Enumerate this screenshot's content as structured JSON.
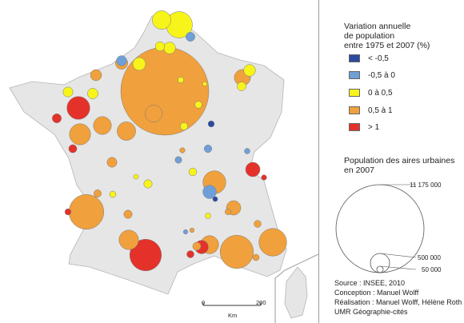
{
  "colors": {
    "lt_-0.5": "#2b4aa0",
    "-0.5_0": "#6f9fd8",
    "0_0.5": "#f7f41a",
    "0.5_1": "#f0a03c",
    "gt_1": "#e4322b",
    "land": "#e6e6e6",
    "land_stroke": "#b5b5b5"
  },
  "legend": {
    "title_lines": [
      "Variation annuelle",
      "de population",
      "entre 1975 et 2007 (%)"
    ],
    "classes": [
      {
        "label": "< -0,5",
        "color_key": "lt_-0.5"
      },
      {
        "label": "-0,5 à 0",
        "color_key": "-0.5_0"
      },
      {
        "label": "0 à 0,5",
        "color_key": "0_0.5"
      },
      {
        "label": "0,5 à 1",
        "color_key": "0.5_1"
      },
      {
        "label": "> 1",
        "color_key": "gt_1"
      }
    ]
  },
  "size_legend": {
    "title_lines": [
      "Population des aires urbaines",
      "en 2007"
    ],
    "values": [
      {
        "label": "11 175 000",
        "population": 11175000
      },
      {
        "label": "500 000",
        "population": 500000
      },
      {
        "label": "50 000",
        "population": 50000
      }
    ]
  },
  "credits": {
    "lines": [
      "Source : INSEE, 2010",
      "Conception : Manuel Wolff",
      "Réalisation : Manuel Wolff, Hélène Roth",
      "UMR Géographie-cités"
    ]
  },
  "scale_bar": {
    "start": "0",
    "end": "200",
    "unit": "Km"
  },
  "map_data": {
    "symbols": [
      {
        "pop": 11175000,
        "cls": "0.5_1"
      },
      {
        "pop": 1450000,
        "cls": "gt_1"
      },
      {
        "pop": 1750000,
        "cls": "0.5_1"
      },
      {
        "pop": 1600000,
        "cls": "0.5_1"
      },
      {
        "pop": 1100000,
        "cls": "0.5_1"
      },
      {
        "pop": 1000000,
        "cls": "0_0.5"
      },
      {
        "pop": 760000,
        "cls": "0.5_1"
      },
      {
        "pop": 640000,
        "cls": "0.5_1"
      },
      {
        "pop": 550000,
        "cls": "0.5_1"
      },
      {
        "pop": 760000,
        "cls": "gt_1"
      },
      {
        "pop": 500000,
        "cls": "0.5_1"
      },
      {
        "pop": 460000,
        "cls": "0.5_1"
      },
      {
        "pop": 470000,
        "cls": "0.5_1"
      },
      {
        "pop": 500000,
        "cls": "0_0.5"
      },
      {
        "pop": 420000,
        "cls": "0.5_1"
      },
      {
        "pop": 380000,
        "cls": "0.5_1"
      },
      {
        "pop": 300000,
        "cls": "0.5_1"
      },
      {
        "pop": 300000,
        "cls": "gt_1"
      },
      {
        "pop": 260000,
        "cls": "gt_1"
      },
      {
        "pop": 260000,
        "cls": "-0.5_0"
      },
      {
        "pop": 220000,
        "cls": "0.5_1"
      },
      {
        "pop": 240000,
        "cls": "0_0.5"
      },
      {
        "pop": 200000,
        "cls": "0_0.5"
      },
      {
        "pop": 180000,
        "cls": "0.5_1"
      },
      {
        "pop": 200000,
        "cls": "0_0.5"
      },
      {
        "pop": 150000,
        "cls": "-0.5_0"
      },
      {
        "pop": 160000,
        "cls": "0_0.5"
      },
      {
        "pop": 140000,
        "cls": "0.5_1"
      },
      {
        "pop": 140000,
        "cls": "0_0.5"
      },
      {
        "pop": 130000,
        "cls": "0_0.5"
      },
      {
        "pop": 120000,
        "cls": "gt_1"
      },
      {
        "pop": 120000,
        "cls": "-0.5_0"
      },
      {
        "pop": 110000,
        "cls": "0_0.5"
      },
      {
        "pop": 100000,
        "cls": "0.5_1"
      },
      {
        "pop": 100000,
        "cls": "0_0.5"
      },
      {
        "pop": 95000,
        "cls": "gt_1"
      },
      {
        "pop": 95000,
        "cls": "0.5_1"
      },
      {
        "pop": 90000,
        "cls": "0_0.5"
      },
      {
        "pop": 85000,
        "cls": "-0.5_0"
      },
      {
        "pop": 80000,
        "cls": "0.5_1"
      },
      {
        "pop": 80000,
        "cls": "0_0.5"
      },
      {
        "pop": 75000,
        "cls": "gt_1"
      },
      {
        "pop": 70000,
        "cls": "0_0.5"
      },
      {
        "pop": 70000,
        "cls": "0.5_1"
      },
      {
        "pop": 65000,
        "cls": "-0.5_0"
      },
      {
        "pop": 60000,
        "cls": "0_0.5"
      },
      {
        "pop": 60000,
        "cls": "0.5_1"
      },
      {
        "pop": 55000,
        "cls": "gt_1"
      },
      {
        "pop": 55000,
        "cls": "lt_-0.5"
      },
      {
        "pop": 50000,
        "cls": "0_0.5"
      },
      {
        "pop": 50000,
        "cls": "0.5_1"
      },
      {
        "pop": 45000,
        "cls": "-0.5_0"
      },
      {
        "pop": 45000,
        "cls": "0_0.5"
      },
      {
        "pop": 40000,
        "cls": "gt_1"
      },
      {
        "pop": 40000,
        "cls": "0.5_1"
      },
      {
        "pop": 35000,
        "cls": "0_0.5"
      },
      {
        "pop": 35000,
        "cls": "lt_-0.5"
      },
      {
        "pop": 30000,
        "cls": "-0.5_0"
      },
      {
        "pop": 30000,
        "cls": "0.5_1"
      },
      {
        "pop": 30000,
        "cls": "0_0.5"
      }
    ]
  }
}
